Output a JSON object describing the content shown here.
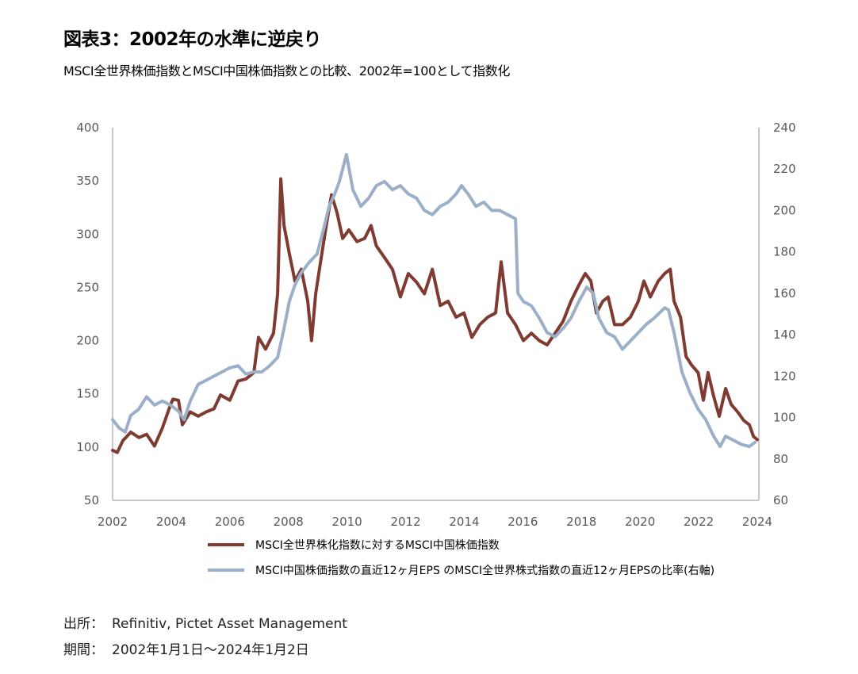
{
  "header": {
    "title": "図表3：2002年の水準に逆戻り",
    "subtitle": "MSCI全世界株価指数とMSCI中国株価指数との比較、2002年=100として指数化"
  },
  "footer": {
    "source_label": "出所：",
    "source_value": "Refinitiv, Pictet Asset Management",
    "period_label": "期間：",
    "period_value": "2002年1月1日～2024年1月2日"
  },
  "chart_data": {
    "type": "line",
    "title": "図表3：2002年の水準に逆戻り",
    "subtitle": "MSCI全世界株価指数とMSCI中国株価指数との比較、2002年=100として指数化",
    "xlabel": "",
    "ylabel_left": "",
    "ylabel_right": "",
    "xlim": [
      2002,
      2024
    ],
    "ylim_left": [
      50,
      400
    ],
    "ylim_right": [
      60,
      240
    ],
    "x_ticks": [
      "2002",
      "2004",
      "2006",
      "2008",
      "2010",
      "2012",
      "2014",
      "2016",
      "2018",
      "2020",
      "2022",
      "2024"
    ],
    "y_ticks_left": [
      "400",
      "350",
      "300",
      "250",
      "200",
      "150",
      "100",
      "50"
    ],
    "y_ticks_right": [
      "240",
      "220",
      "200",
      "180",
      "160",
      "140",
      "120",
      "100",
      "80",
      "60"
    ],
    "grid": false,
    "legend_position": "bottom",
    "colors": {
      "series1": "#7f3b32",
      "series2": "#9bb0c8",
      "axis": "#c8c8c8"
    },
    "series": [
      {
        "name": "MSCI全世界株化指数に対するMSCI中国株価指数",
        "axis": "left",
        "points": [
          [
            2002.0,
            97
          ],
          [
            2002.16,
            95
          ],
          [
            2002.35,
            106
          ],
          [
            2002.62,
            114
          ],
          [
            2002.9,
            109
          ],
          [
            2003.16,
            112
          ],
          [
            2003.43,
            101
          ],
          [
            2003.7,
            118
          ],
          [
            2003.98,
            140
          ],
          [
            2004.06,
            145
          ],
          [
            2004.25,
            144
          ],
          [
            2004.38,
            121
          ],
          [
            2004.65,
            133
          ],
          [
            2004.92,
            129
          ],
          [
            2005.19,
            133
          ],
          [
            2005.46,
            136
          ],
          [
            2005.68,
            149
          ],
          [
            2006.0,
            144
          ],
          [
            2006.28,
            162
          ],
          [
            2006.55,
            164
          ],
          [
            2006.82,
            170
          ],
          [
            2006.98,
            203
          ],
          [
            2007.22,
            192
          ],
          [
            2007.49,
            207
          ],
          [
            2007.63,
            244
          ],
          [
            2007.74,
            352
          ],
          [
            2007.85,
            308
          ],
          [
            2008.03,
            282
          ],
          [
            2008.22,
            256
          ],
          [
            2008.44,
            267
          ],
          [
            2008.66,
            237
          ],
          [
            2008.79,
            200
          ],
          [
            2008.93,
            244
          ],
          [
            2009.12,
            278
          ],
          [
            2009.31,
            311
          ],
          [
            2009.47,
            337
          ],
          [
            2009.66,
            320
          ],
          [
            2009.85,
            296
          ],
          [
            2010.06,
            304
          ],
          [
            2010.34,
            293
          ],
          [
            2010.6,
            296
          ],
          [
            2010.82,
            308
          ],
          [
            2011.0,
            289
          ],
          [
            2011.28,
            278
          ],
          [
            2011.55,
            267
          ],
          [
            2011.82,
            241
          ],
          [
            2012.09,
            263
          ],
          [
            2012.37,
            255
          ],
          [
            2012.64,
            244
          ],
          [
            2012.91,
            267
          ],
          [
            2013.18,
            233
          ],
          [
            2013.45,
            237
          ],
          [
            2013.72,
            222
          ],
          [
            2013.99,
            226
          ],
          [
            2014.26,
            203
          ],
          [
            2014.53,
            215
          ],
          [
            2014.8,
            222
          ],
          [
            2015.07,
            226
          ],
          [
            2015.26,
            274
          ],
          [
            2015.48,
            226
          ],
          [
            2015.75,
            215
          ],
          [
            2016.02,
            200
          ],
          [
            2016.29,
            207
          ],
          [
            2016.56,
            200
          ],
          [
            2016.83,
            196
          ],
          [
            2017.1,
            207
          ],
          [
            2017.37,
            218
          ],
          [
            2017.64,
            237
          ],
          [
            2017.91,
            252
          ],
          [
            2018.13,
            263
          ],
          [
            2018.32,
            256
          ],
          [
            2018.51,
            226
          ],
          [
            2018.73,
            237
          ],
          [
            2018.91,
            241
          ],
          [
            2019.13,
            215
          ],
          [
            2019.4,
            215
          ],
          [
            2019.67,
            222
          ],
          [
            2019.94,
            237
          ],
          [
            2020.13,
            256
          ],
          [
            2020.35,
            241
          ],
          [
            2020.62,
            256
          ],
          [
            2020.84,
            263
          ],
          [
            2021.03,
            267
          ],
          [
            2021.16,
            237
          ],
          [
            2021.38,
            222
          ],
          [
            2021.57,
            185
          ],
          [
            2021.76,
            177
          ],
          [
            2021.98,
            170
          ],
          [
            2022.16,
            144
          ],
          [
            2022.32,
            170
          ],
          [
            2022.51,
            148
          ],
          [
            2022.7,
            129
          ],
          [
            2022.92,
            155
          ],
          [
            2023.11,
            140
          ],
          [
            2023.33,
            133
          ],
          [
            2023.54,
            125
          ],
          [
            2023.73,
            121
          ],
          [
            2023.87,
            110
          ],
          [
            2024.0,
            107
          ]
        ]
      },
      {
        "name": "MSCI中国株価指数の直近12ヶ月EPS のMSCI全世界株式指数の直近12ヶ月EPSの比率(右軸)",
        "axis": "right",
        "points": [
          [
            2002.0,
            99
          ],
          [
            2002.22,
            95
          ],
          [
            2002.43,
            93
          ],
          [
            2002.62,
            101
          ],
          [
            2002.89,
            104
          ],
          [
            2003.16,
            110
          ],
          [
            2003.43,
            106
          ],
          [
            2003.7,
            108
          ],
          [
            2003.98,
            106
          ],
          [
            2004.25,
            103
          ],
          [
            2004.44,
            99
          ],
          [
            2004.65,
            108
          ],
          [
            2004.92,
            116
          ],
          [
            2005.19,
            118
          ],
          [
            2005.46,
            120
          ],
          [
            2005.73,
            122
          ],
          [
            2006.0,
            124
          ],
          [
            2006.28,
            125
          ],
          [
            2006.55,
            121
          ],
          [
            2006.82,
            122
          ],
          [
            2007.09,
            122
          ],
          [
            2007.36,
            125
          ],
          [
            2007.63,
            129
          ],
          [
            2007.85,
            143
          ],
          [
            2008.03,
            156
          ],
          [
            2008.22,
            164
          ],
          [
            2008.44,
            170
          ],
          [
            2008.71,
            175
          ],
          [
            2008.98,
            179
          ],
          [
            2009.2,
            191
          ],
          [
            2009.39,
            202
          ],
          [
            2009.58,
            208
          ],
          [
            2009.74,
            214
          ],
          [
            2009.98,
            227
          ],
          [
            2010.2,
            210
          ],
          [
            2010.47,
            202
          ],
          [
            2010.74,
            206
          ],
          [
            2011.0,
            212
          ],
          [
            2011.28,
            214
          ],
          [
            2011.55,
            210
          ],
          [
            2011.82,
            212
          ],
          [
            2012.09,
            208
          ],
          [
            2012.37,
            206
          ],
          [
            2012.64,
            200
          ],
          [
            2012.91,
            198
          ],
          [
            2013.18,
            202
          ],
          [
            2013.45,
            204
          ],
          [
            2013.72,
            208
          ],
          [
            2013.91,
            212
          ],
          [
            2014.13,
            208
          ],
          [
            2014.4,
            202
          ],
          [
            2014.67,
            204
          ],
          [
            2014.94,
            200
          ],
          [
            2015.21,
            200
          ],
          [
            2015.48,
            198
          ],
          [
            2015.75,
            196
          ],
          [
            2015.83,
            160
          ],
          [
            2016.02,
            156
          ],
          [
            2016.29,
            154
          ],
          [
            2016.56,
            148
          ],
          [
            2016.83,
            141
          ],
          [
            2017.1,
            139
          ],
          [
            2017.37,
            143
          ],
          [
            2017.64,
            148
          ],
          [
            2017.91,
            156
          ],
          [
            2018.18,
            163
          ],
          [
            2018.4,
            160
          ],
          [
            2018.59,
            148
          ],
          [
            2018.86,
            141
          ],
          [
            2019.13,
            139
          ],
          [
            2019.4,
            133
          ],
          [
            2019.67,
            137
          ],
          [
            2019.94,
            141
          ],
          [
            2020.21,
            145
          ],
          [
            2020.48,
            148
          ],
          [
            2020.84,
            153
          ],
          [
            2020.97,
            152
          ],
          [
            2021.16,
            141
          ],
          [
            2021.43,
            122
          ],
          [
            2021.7,
            112
          ],
          [
            2021.98,
            104
          ],
          [
            2022.24,
            99
          ],
          [
            2022.51,
            91
          ],
          [
            2022.73,
            86
          ],
          [
            2022.92,
            91
          ],
          [
            2023.19,
            89
          ],
          [
            2023.46,
            87
          ],
          [
            2023.73,
            86
          ],
          [
            2023.92,
            88
          ]
        ]
      }
    ]
  }
}
